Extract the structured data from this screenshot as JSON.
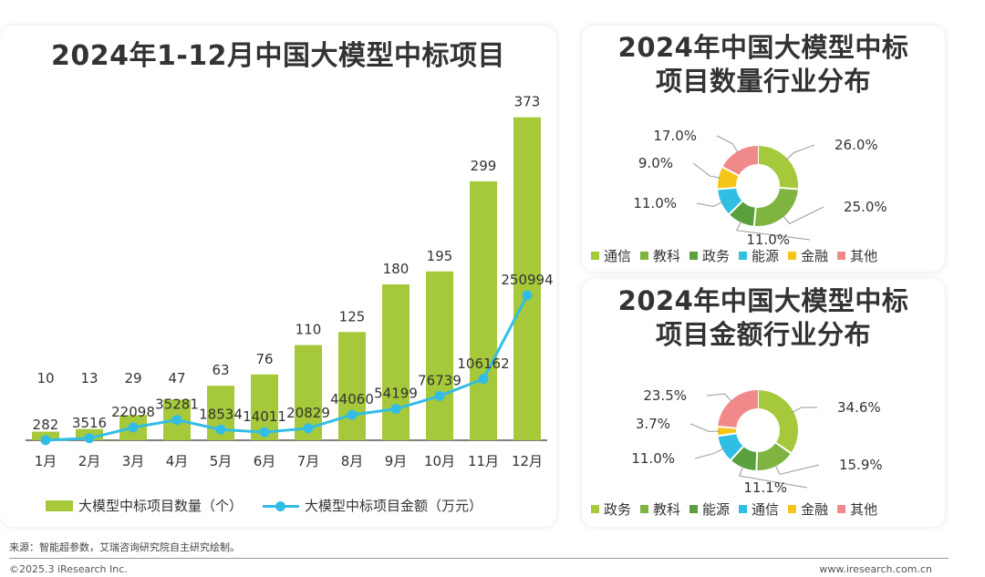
{
  "chart_data": [
    {
      "type": "bar",
      "title": "2024年1-12月中国大模型中标项目",
      "categories": [
        "1月",
        "2月",
        "3月",
        "4月",
        "5月",
        "6月",
        "7月",
        "8月",
        "9月",
        "10月",
        "11月",
        "12月"
      ],
      "series": [
        {
          "name": "大模型中标项目数量（个）",
          "type": "bar",
          "color": "#a5c93a",
          "values": [
            10,
            13,
            29,
            47,
            63,
            76,
            110,
            125,
            180,
            195,
            299,
            373
          ]
        },
        {
          "name": "大模型中标项目金额（万元）",
          "type": "line",
          "color": "#33bde6",
          "values": [
            282,
            3516,
            22098,
            35281,
            18534,
            14011,
            20829,
            44060,
            54199,
            76739,
            106162,
            250994
          ]
        }
      ],
      "ylim_bar": [
        0,
        400
      ],
      "ylim_line": [
        0,
        600000
      ],
      "legend": "bottom"
    },
    {
      "type": "pie",
      "title": "2024年中国大模型中标项目数量行业分布",
      "labels": [
        "通信",
        "教科",
        "政务",
        "能源",
        "金融",
        "其他"
      ],
      "values": [
        26.0,
        25.0,
        11.0,
        11.0,
        9.0,
        17.0
      ],
      "value_labels": [
        "26.0%",
        "25.0%",
        "11.0%",
        "11.0%",
        "9.0%",
        "17.0%"
      ],
      "colors": [
        "#a5c93a",
        "#80b441",
        "#5aa13e",
        "#2ebfe3",
        "#f5c518",
        "#f08a8a"
      ]
    },
    {
      "type": "pie",
      "title": "2024年中国大模型中标项目金额行业分布",
      "labels": [
        "政务",
        "教科",
        "能源",
        "通信",
        "金融",
        "其他"
      ],
      "values": [
        34.6,
        15.9,
        11.1,
        11.0,
        3.7,
        23.5
      ],
      "value_labels": [
        "34.6%",
        "15.9%",
        "11.1%",
        "11.0%",
        "3.7%",
        "23.5%"
      ],
      "colors": [
        "#a5c93a",
        "#80b441",
        "#5aa13e",
        "#2ebfe3",
        "#f5c518",
        "#f08a8a"
      ]
    }
  ],
  "titles": {
    "main": "2024年1-12月中国大模型中标项目",
    "pie1_line1": "2024年中国大模型中标",
    "pie1_line2": "项目数量行业分布",
    "pie2_line1": "2024年中国大模型中标",
    "pie2_line2": "项目金额行业分布"
  },
  "footer": {
    "source": "来源：智能超参数，艾瑞咨询研究院自主研究绘制。",
    "copyright": "©2025.3 iResearch Inc.",
    "website": "www.iresearch.com.cn"
  }
}
